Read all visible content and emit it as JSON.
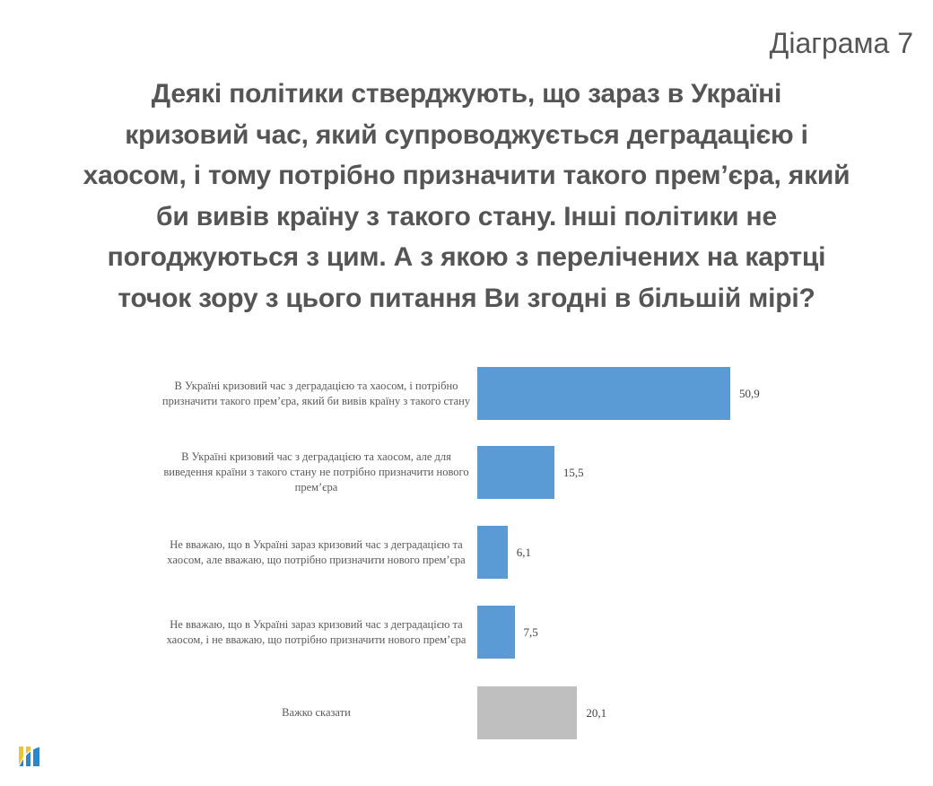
{
  "header": {
    "diagram_label": "Діаграма 7",
    "title_lines": [
      "Деякі політики стверджують, що зараз в Україні",
      "кризовий час, який супроводжується деградацією і",
      "хаосом, і тому потрібно призначити такого прем’єра, який",
      "би вивів країну з такого стану. Інші політики не",
      "погоджуються з цим. А з якою з перелічених на картці",
      "точок зору з цього питання Ви згодні в більшій мірі?"
    ]
  },
  "colors": {
    "primary_bar": "#5b9bd5",
    "neutral_bar": "#bfbfbf",
    "text": "#555555"
  },
  "chart_data": {
    "type": "bar",
    "orientation": "horizontal",
    "title": "Деякі політики стверджують, що зараз в Україні кризовий час, який супроводжується деградацією і хаосом, і тому потрібно призначити такого прем’єра, який би вивів країну з такого стану. Інші політики не погоджуються з цим. А з якою з перелічених на картці точок зору з цього питання Ви згодні в більшій мірі?",
    "xlabel": "",
    "ylabel": "",
    "grid": false,
    "legend": "none",
    "axis_visible": false,
    "categories": [
      "В Україні кризовий час з деградацією та хаосом, і потрібно призначити такого прем’єра, який би вивів країну з такого стану",
      "В Україні кризовий час з деградацією та хаосом, але для виведення країни з такого стану не потрібно призначити нового прем’єра",
      "Не вважаю, що в Україні зараз кризовий час з деградацією та хаосом, але вважаю, що потрібно призначити нового прем’єра",
      "Не вважаю, що в Україні зараз кризовий час з деградацією та хаосом, і не вважаю, що потрібно призначити нового прем’єра",
      "Важко сказати"
    ],
    "values": [
      50.9,
      15.5,
      6.1,
      7.5,
      20.1
    ],
    "value_labels": [
      "50,9",
      "15,5",
      "6,1",
      "7,5",
      "20,1"
    ],
    "bar_colors": [
      "#5b9bd5",
      "#5b9bd5",
      "#5b9bd5",
      "#5b9bd5",
      "#bfbfbf"
    ]
  },
  "footer": {
    "logo_icon": "bars-logo-icon"
  }
}
